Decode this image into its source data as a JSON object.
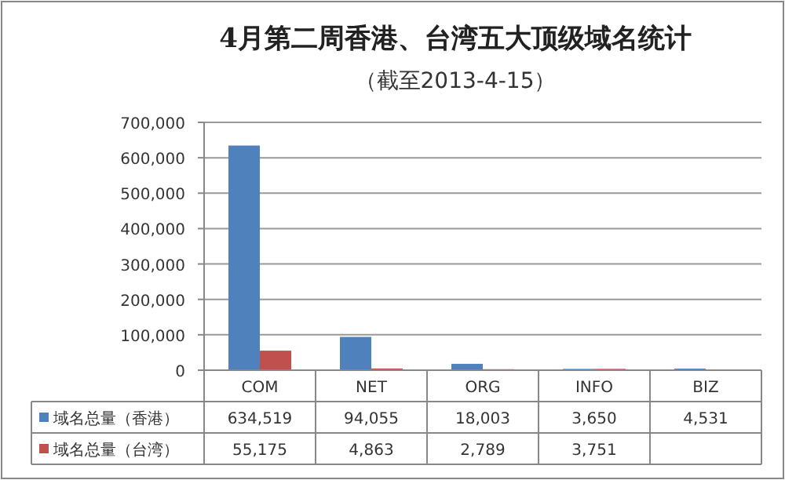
{
  "chart_data": {
    "type": "bar",
    "title": "4月第二周香港、台湾五大顶级域名统计",
    "subtitle": "（截至2013-4-15）",
    "categories": [
      "COM",
      "NET",
      "ORG",
      "INFO",
      "BIZ"
    ],
    "series": [
      {
        "name": "域名总量（香港）",
        "color": "#4f81bd",
        "values": [
          634519,
          94055,
          18003,
          3650,
          4531
        ],
        "value_labels": [
          "634,519",
          "94,055",
          "18,003",
          "3,650",
          "4,531"
        ]
      },
      {
        "name": "域名总量（台湾）",
        "color": "#c0504d",
        "values": [
          55175,
          4863,
          2789,
          3751,
          null
        ],
        "value_labels": [
          "55,175",
          "4,863",
          "2,789",
          "3,751",
          null
        ]
      }
    ],
    "ylim": [
      0,
      700000
    ],
    "yticks": [
      {
        "value": 0,
        "label": "0"
      },
      {
        "value": 100000,
        "label": "100,000"
      },
      {
        "value": 200000,
        "label": "200,000"
      },
      {
        "value": 300000,
        "label": "300,000"
      },
      {
        "value": 400000,
        "label": "400,000"
      },
      {
        "value": 500000,
        "label": "500,000"
      },
      {
        "value": 600000,
        "label": "600,000"
      },
      {
        "value": 700000,
        "label": "700,000"
      }
    ],
    "grid": "y",
    "legend": "bottom"
  }
}
